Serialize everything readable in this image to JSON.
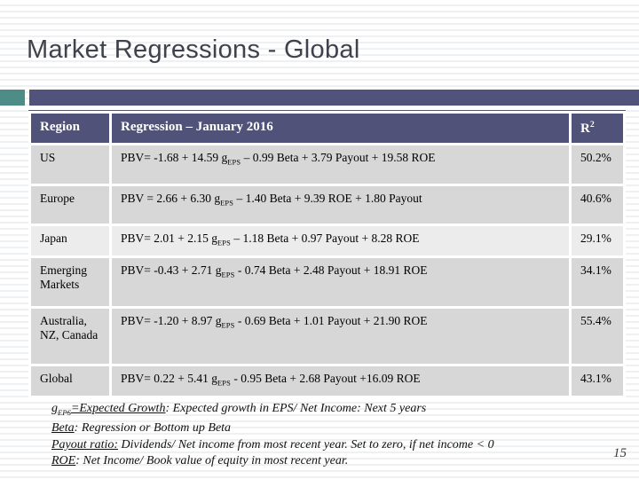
{
  "slide": {
    "title": "Market Regressions - Global",
    "page_number": "15"
  },
  "colors": {
    "accent_teal": "#4E8C88",
    "accent_purple": "#51537A",
    "table_header_bg": "#50527A",
    "row_bg": "#D7D7D7",
    "row_bg_light": "#ECECEC",
    "title_color": "#3F424C"
  },
  "table": {
    "headers": {
      "region": "Region",
      "regression": "Regression – January 2016",
      "r2_base": "R",
      "r2_sup": "2"
    },
    "rows": [
      {
        "region": "US",
        "eq_pre": "PBV= -1.68 + 14.59 g",
        "eq_sub": "EPS",
        "eq_post": " – 0.99 Beta + 3.79 Payout + 19.58 ROE",
        "r2": "50.2%"
      },
      {
        "region": "Europe",
        "eq_pre": "PBV = 2.66 + 6.30 g",
        "eq_sub": "EPS",
        "eq_post": " – 1.40 Beta + 9.39 ROE + 1.80 Payout",
        "r2": "40.6%"
      },
      {
        "region": "Japan",
        "eq_pre": "PBV= 2.01 + 2.15 g",
        "eq_sub": "EPS",
        "eq_post": " – 1.18 Beta + 0.97 Payout + 8.28 ROE",
        "r2": "29.1%"
      },
      {
        "region": "Emerging Markets",
        "eq_pre": "PBV= -0.43 + 2.71 g",
        "eq_sub": "EPS",
        "eq_post": " - 0.74 Beta + 2.48 Payout + 18.91 ROE",
        "r2": "34.1%"
      },
      {
        "region": "Australia, NZ, Canada",
        "eq_pre": "PBV= -1.20 + 8.97 g",
        "eq_sub": "EPS",
        "eq_post": " - 0.69 Beta + 1.01 Payout + 21.90 ROE",
        "r2": "55.4%"
      },
      {
        "region": "Global",
        "eq_pre": "PBV= 0.22 + 5.41 g",
        "eq_sub": "EPS",
        "eq_post": " - 0.95 Beta + 2.68 Payout +16.09 ROE",
        "r2": "43.1%"
      }
    ]
  },
  "footnotes": [
    {
      "lead_pre": "g",
      "lead_sub": "EPS",
      "lead_rest": "=Expected Growth",
      "rest": ": Expected growth in EPS/ Net Income: Next 5 years"
    },
    {
      "lead": "Beta",
      "rest": ": Regression or Bottom up Beta"
    },
    {
      "lead": "Payout ratio:",
      "rest": " Dividends/ Net income from most recent year. Set to zero, if net income < 0"
    },
    {
      "lead": "ROE",
      "rest": ": Net Income/ Book value of equity in most recent year."
    }
  ]
}
